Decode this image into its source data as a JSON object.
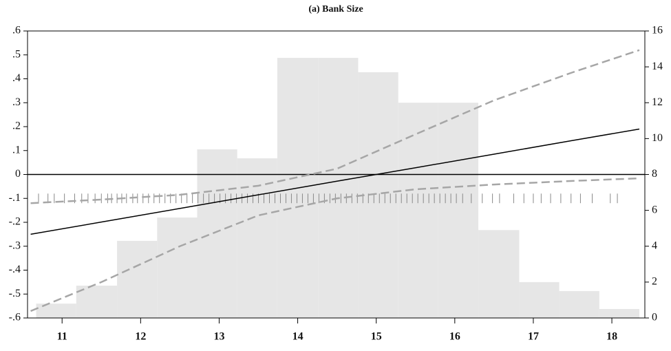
{
  "chart_data": {
    "type": "line",
    "title": "(a) Bank Size",
    "xlim": [
      10.56,
      18.42
    ],
    "xticks": [
      11,
      12,
      13,
      14,
      15,
      16,
      17,
      18
    ],
    "ylim": [
      -0.6,
      0.6
    ],
    "yticks": [
      {
        "value": 0.6,
        "label": ".6"
      },
      {
        "value": 0.5,
        "label": ".5"
      },
      {
        "value": 0.4,
        "label": ".4"
      },
      {
        "value": 0.3,
        "label": ".3"
      },
      {
        "value": 0.2,
        "label": ".2"
      },
      {
        "value": 0.1,
        "label": ".1"
      },
      0,
      {
        "value": -0.1,
        "label": "-.1"
      },
      {
        "value": -0.2,
        "label": "-.2"
      },
      {
        "value": -0.3,
        "label": "-.3"
      },
      {
        "value": -0.4,
        "label": "-.4"
      },
      {
        "value": -0.5,
        "label": "-.5"
      },
      {
        "value": -0.6,
        "label": "-.6"
      }
    ],
    "y2lim": [
      0,
      16
    ],
    "y2ticks": [
      0,
      2,
      4,
      6,
      8,
      10,
      12,
      14,
      16
    ],
    "reference_line": 0,
    "x": [
      10.6,
      11.5,
      12.5,
      13.5,
      14.5,
      15.5,
      16.5,
      17.5,
      18.35
    ],
    "series": [
      {
        "color": "#000000",
        "dashed": false,
        "values": [
          -0.25,
          -0.199,
          -0.142,
          -0.085,
          -0.028,
          0.028,
          0.085,
          0.142,
          0.19
        ]
      },
      {
        "color": "#a6a6a6",
        "dashed": true,
        "values": [
          -0.12,
          -0.105,
          -0.085,
          -0.047,
          0.024,
          0.168,
          0.31,
          0.427,
          0.52
        ]
      },
      {
        "color": "#a6a6a6",
        "dashed": true,
        "values": [
          -0.571,
          -0.45,
          -0.3,
          -0.171,
          -0.1,
          -0.062,
          -0.042,
          -0.027,
          -0.016
        ]
      }
    ],
    "histogram": {
      "axis": "y2",
      "color": "#e6e6e6",
      "bins": [
        10.67,
        11.18,
        11.7,
        12.21,
        12.72,
        13.23,
        13.74,
        14.26,
        14.77,
        15.28,
        15.79,
        16.3,
        16.82,
        17.33,
        17.84,
        18.35
      ],
      "values": [
        0.8,
        1.8,
        4.3,
        5.6,
        9.4,
        8.9,
        14.5,
        14.5,
        13.7,
        12.0,
        12.0,
        4.9,
        2.0,
        1.5,
        0.5
      ]
    },
    "rug": {
      "color": "#888888",
      "x": [
        10.7,
        10.82,
        10.9,
        11.03,
        11.16,
        11.25,
        11.33,
        11.42,
        11.5,
        11.58,
        11.63,
        11.7,
        11.76,
        11.82,
        11.9,
        11.96,
        12.03,
        12.1,
        12.17,
        12.24,
        12.31,
        12.38,
        12.45,
        12.52,
        12.59,
        12.66,
        12.73,
        12.8,
        12.87,
        12.94,
        13.01,
        13.08,
        13.15,
        13.22,
        13.29,
        13.36,
        13.43,
        13.5,
        13.57,
        13.64,
        13.71,
        13.78,
        13.85,
        13.92,
        13.99,
        14.06,
        14.13,
        14.2,
        14.27,
        14.34,
        14.41,
        14.48,
        14.55,
        14.62,
        14.69,
        14.76,
        14.83,
        14.9,
        14.97,
        15.04,
        15.11,
        15.18,
        15.25,
        15.32,
        15.39,
        15.46,
        15.53,
        15.6,
        15.67,
        15.74,
        15.81,
        15.88,
        15.95,
        16.02,
        16.1,
        16.21,
        16.35,
        16.48,
        16.57,
        16.75,
        16.88,
        17.0,
        17.1,
        17.22,
        17.35,
        17.48,
        17.6,
        17.75,
        17.98,
        18.07
      ]
    }
  }
}
